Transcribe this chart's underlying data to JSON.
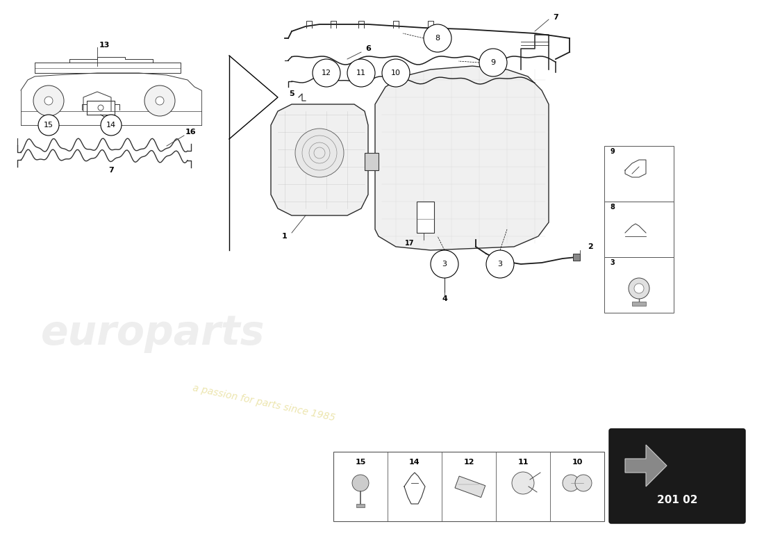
{
  "background_color": "#ffffff",
  "part_number_box": "201 02",
  "watermark_text1": "europarts",
  "watermark_text2": "a passion for parts since 1985",
  "line_color": "#333333",
  "light_line_color": "#666666"
}
